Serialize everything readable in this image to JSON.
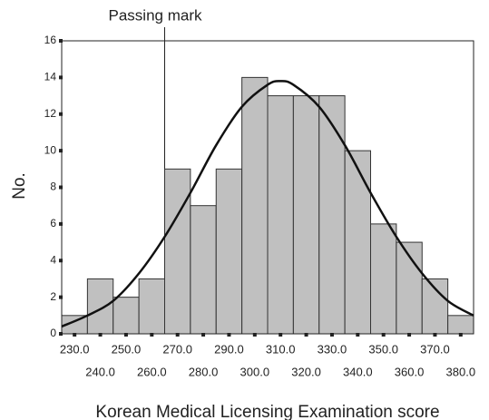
{
  "chart_data": {
    "type": "histogram",
    "xlabel": "Korean Medical Licensing Examination score",
    "ylabel": "No.",
    "bins": [
      225,
      235,
      245,
      255,
      265,
      275,
      285,
      295,
      305,
      315,
      325,
      335,
      345,
      355,
      365,
      375,
      385
    ],
    "values": [
      1,
      3,
      2,
      3,
      9,
      7,
      9,
      14,
      13,
      13,
      13,
      10,
      6,
      5,
      3,
      1
    ],
    "color": "#c0c0c0",
    "xlim": [
      225,
      385
    ],
    "ylim": [
      0,
      16
    ],
    "xticks": [
      {
        "value": 230,
        "label": "230.0"
      },
      {
        "value": 240,
        "label": "240.0"
      },
      {
        "value": 250,
        "label": "250.0"
      },
      {
        "value": 260,
        "label": "260.0"
      },
      {
        "value": 270,
        "label": "270.0"
      },
      {
        "value": 280,
        "label": "280.0"
      },
      {
        "value": 290,
        "label": "290.0"
      },
      {
        "value": 300,
        "label": "300.0"
      },
      {
        "value": 310,
        "label": "310.0"
      },
      {
        "value": 320,
        "label": "320.0"
      },
      {
        "value": 330,
        "label": "330.0"
      },
      {
        "value": 340,
        "label": "340.0"
      },
      {
        "value": 350,
        "label": "350.0"
      },
      {
        "value": 360,
        "label": "360.0"
      },
      {
        "value": 370,
        "label": "370.0"
      },
      {
        "value": 380,
        "label": "380.0"
      }
    ],
    "yticks": [
      0,
      2,
      4,
      6,
      8,
      10,
      12,
      14,
      16
    ],
    "curve": {
      "x": [
        225,
        235,
        245,
        255,
        265,
        275,
        285,
        295,
        305,
        310,
        315,
        325,
        335,
        345,
        355,
        365,
        375,
        385
      ],
      "y": [
        0.4,
        1.0,
        1.8,
        3.3,
        5.3,
        7.7,
        10.3,
        12.4,
        13.6,
        13.8,
        13.6,
        12.4,
        10.3,
        7.7,
        5.3,
        3.3,
        1.8,
        1.0
      ]
    },
    "annotation": {
      "text": "Passing mark",
      "x": 265
    }
  }
}
